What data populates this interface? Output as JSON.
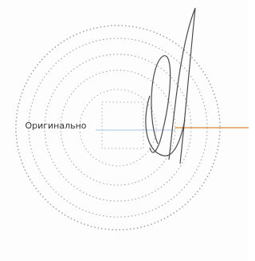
{
  "stamp": {
    "label": "Оригинально"
  }
}
